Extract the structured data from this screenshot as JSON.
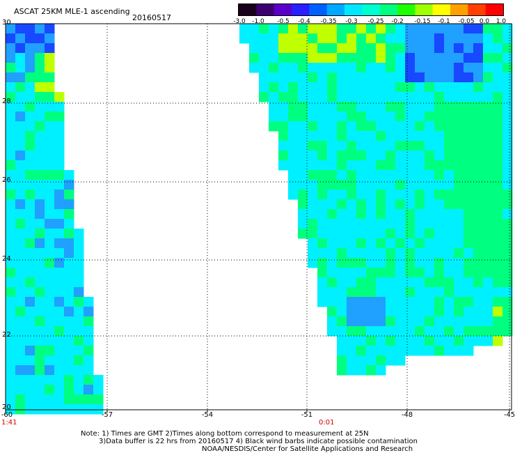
{
  "header": {
    "title": "ASCAT 25KM MLE-1 ascending",
    "date": "20160517"
  },
  "colorbar": {
    "labels": [
      "-3.0",
      "-1.0",
      "-0.5",
      "-0.4",
      "-0.35",
      "-0.3",
      "-0.25",
      "-0.2",
      "-0.15",
      "-0.1",
      "-0.05",
      "0.0",
      "1.0"
    ],
    "colors": [
      "#1a001a",
      "#3d0070",
      "#5a00c8",
      "#2a20ff",
      "#0060ff",
      "#00a8ff",
      "#00e8ff",
      "#00ffd0",
      "#00ff80",
      "#20ff00",
      "#a0ff00",
      "#ffff00",
      "#ffa000",
      "#ff4000",
      "#ff0000"
    ]
  },
  "map": {
    "lon_ticks": [
      "-60",
      "-57",
      "-54",
      "-51",
      "-48",
      "-45"
    ],
    "lat_ticks": [
      "30",
      "28",
      "26",
      "24",
      "22",
      "20"
    ],
    "time_labels": [
      {
        "text": "1:41",
        "lon": "-60"
      },
      {
        "text": "0:01",
        "lon": "-51"
      }
    ],
    "lon_range": [
      -60,
      -45
    ],
    "lat_range": [
      20,
      30
    ],
    "grid": true,
    "palette": {
      "blue": "#1848ff",
      "mid_blue": "#20a0ff",
      "cyan": "#00f0ff",
      "green": "#00ff80",
      "yellowgreen": "#c0ff00"
    }
  },
  "notes": {
    "line1": "Note: 1) Times are GMT 2)Times along bottom correspond to measurement at 25N",
    "line2": "3)Data buffer is 22 hrs from 20160517 4) Black wind barbs indicate possible contamination",
    "line3": "NOAA/NESDIS/Center for Satellite Applications and Research"
  }
}
